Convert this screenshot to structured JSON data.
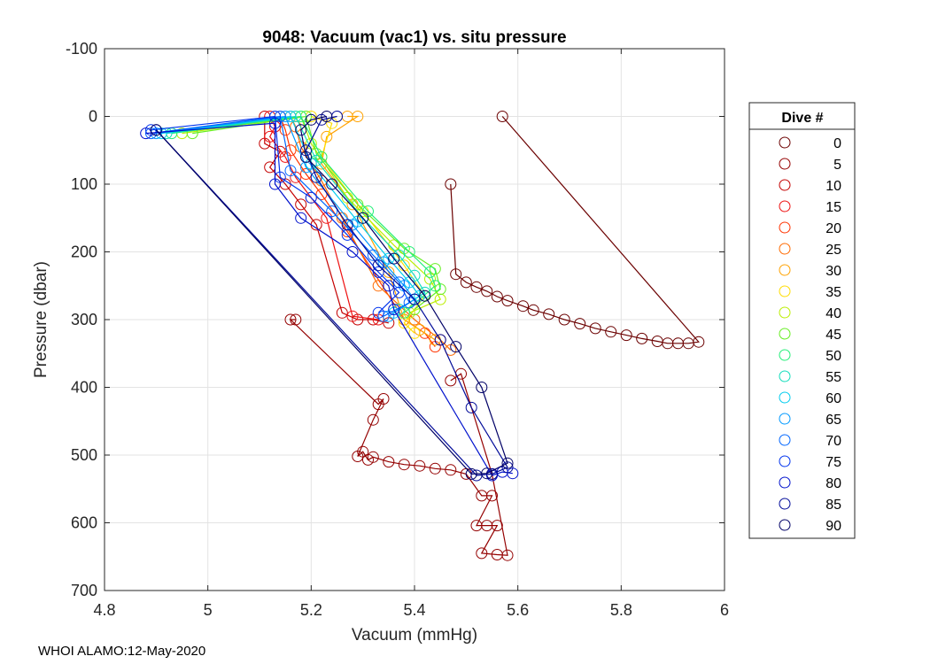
{
  "footer_text": "WHOI ALAMO:12-May-2020",
  "chart_data": {
    "type": "scatter",
    "title": "9048: Vacuum (vac1) vs. situ pressure",
    "xlabel": "Vacuum (mmHg)",
    "ylabel": "Pressure (dbar)",
    "xlim": [
      4.8,
      6
    ],
    "ylim": [
      -100,
      700
    ],
    "y_reversed": true,
    "grid": true,
    "xticks": [
      4.8,
      5,
      5.2,
      5.4,
      5.6,
      5.8,
      6
    ],
    "xtick_labels": [
      "4.8",
      "5",
      "5.2",
      "5.4",
      "5.6",
      "5.8",
      "6"
    ],
    "yticks": [
      -100,
      0,
      100,
      200,
      300,
      400,
      500,
      600,
      700
    ],
    "ytick_labels": [
      "-100",
      "0",
      "100",
      "200",
      "300",
      "400",
      "500",
      "600",
      "700"
    ],
    "legend": {
      "title": "Dive #",
      "position": "outside-right",
      "entries": [
        {
          "label": "0",
          "color": "#6b0000"
        },
        {
          "label": "5",
          "color": "#940000"
        },
        {
          "label": "10",
          "color": "#c40000"
        },
        {
          "label": "15",
          "color": "#ee1111"
        },
        {
          "label": "20",
          "color": "#ff3300"
        },
        {
          "label": "25",
          "color": "#ff6a00"
        },
        {
          "label": "30",
          "color": "#ffa200"
        },
        {
          "label": "35",
          "color": "#ffdd00"
        },
        {
          "label": "40",
          "color": "#bbee00"
        },
        {
          "label": "45",
          "color": "#66ee22"
        },
        {
          "label": "50",
          "color": "#22ee77"
        },
        {
          "label": "55",
          "color": "#11ddbb"
        },
        {
          "label": "60",
          "color": "#00ccee"
        },
        {
          "label": "65",
          "color": "#0099ff"
        },
        {
          "label": "70",
          "color": "#0066ff"
        },
        {
          "label": "75",
          "color": "#0033ee"
        },
        {
          "label": "80",
          "color": "#0011cc"
        },
        {
          "label": "85",
          "color": "#000a99"
        },
        {
          "label": "90",
          "color": "#000066"
        }
      ]
    },
    "series": [
      {
        "name": "0",
        "color": "#6b0000",
        "points": [
          [
            5.57,
            0
          ],
          [
            5.95,
            333
          ],
          [
            5.93,
            335
          ],
          [
            5.91,
            335
          ],
          [
            5.89,
            335
          ],
          [
            5.87,
            332
          ],
          [
            5.84,
            328
          ],
          [
            5.81,
            323
          ],
          [
            5.78,
            318
          ],
          [
            5.75,
            313
          ],
          [
            5.72,
            306
          ],
          [
            5.69,
            300
          ],
          [
            5.66,
            292
          ],
          [
            5.63,
            286
          ],
          [
            5.61,
            280
          ],
          [
            5.58,
            272
          ],
          [
            5.56,
            266
          ],
          [
            5.54,
            258
          ],
          [
            5.52,
            252
          ],
          [
            5.5,
            245
          ],
          [
            5.48,
            233
          ],
          [
            5.47,
            100
          ]
        ]
      },
      {
        "name": "5",
        "color": "#940000",
        "points": [
          [
            5.17,
            300
          ],
          [
            5.16,
            300
          ],
          [
            5.33,
            425
          ],
          [
            5.34,
            417
          ],
          [
            5.32,
            448
          ],
          [
            5.29,
            502
          ],
          [
            5.3,
            495
          ],
          [
            5.31,
            507
          ],
          [
            5.32,
            503
          ],
          [
            5.35,
            510
          ],
          [
            5.38,
            514
          ],
          [
            5.41,
            516
          ],
          [
            5.44,
            520
          ],
          [
            5.47,
            522
          ],
          [
            5.5,
            528
          ],
          [
            5.53,
            560
          ],
          [
            5.55,
            560
          ],
          [
            5.52,
            604
          ],
          [
            5.54,
            604
          ],
          [
            5.56,
            604
          ],
          [
            5.53,
            645
          ],
          [
            5.56,
            647
          ],
          [
            5.58,
            648
          ],
          [
            5.55,
            528
          ],
          [
            5.49,
            380
          ],
          [
            5.47,
            390
          ]
        ]
      },
      {
        "name": "10",
        "color": "#c40000",
        "points": [
          [
            5.11,
            0
          ],
          [
            5.11,
            40
          ],
          [
            5.14,
            52
          ],
          [
            5.12,
            75
          ],
          [
            5.15,
            100
          ],
          [
            5.18,
            130
          ],
          [
            5.21,
            160
          ],
          [
            5.26,
            290
          ],
          [
            5.29,
            300
          ],
          [
            5.32,
            300
          ],
          [
            5.35,
            305
          ]
        ]
      },
      {
        "name": "15",
        "color": "#ee1111",
        "points": [
          [
            5.12,
            0
          ],
          [
            5.13,
            15
          ],
          [
            5.12,
            30
          ],
          [
            5.15,
            60
          ],
          [
            5.17,
            90
          ],
          [
            5.2,
            120
          ],
          [
            5.23,
            150
          ],
          [
            5.28,
            295
          ],
          [
            5.33,
            300
          ]
        ]
      },
      {
        "name": "20",
        "color": "#ff3300",
        "points": [
          [
            5.14,
            0
          ],
          [
            5.15,
            20
          ],
          [
            5.16,
            50
          ],
          [
            5.19,
            85
          ],
          [
            5.22,
            115
          ],
          [
            5.27,
            170
          ],
          [
            5.38,
            300
          ],
          [
            5.42,
            320
          ],
          [
            5.44,
            340
          ]
        ]
      },
      {
        "name": "25",
        "color": "#ff6a00",
        "points": [
          [
            5.16,
            0
          ],
          [
            5.17,
            15
          ],
          [
            5.18,
            45
          ],
          [
            5.22,
            95
          ],
          [
            5.26,
            150
          ],
          [
            5.33,
            250
          ],
          [
            5.4,
            300
          ],
          [
            5.45,
            330
          ],
          [
            5.47,
            345
          ]
        ]
      },
      {
        "name": "30",
        "color": "#ffa200",
        "points": [
          [
            5.27,
            0
          ],
          [
            5.29,
            0
          ],
          [
            5.23,
            30
          ],
          [
            5.22,
            70
          ],
          [
            5.28,
            130
          ],
          [
            5.35,
            230
          ],
          [
            5.38,
            300
          ],
          [
            5.41,
            315
          ],
          [
            5.44,
            330
          ]
        ]
      },
      {
        "name": "35",
        "color": "#ffdd00",
        "points": [
          [
            5.2,
            0
          ],
          [
            5.24,
            10
          ],
          [
            5.22,
            60
          ],
          [
            5.3,
            140
          ],
          [
            5.38,
            220
          ],
          [
            5.42,
            265
          ],
          [
            5.38,
            305
          ],
          [
            5.4,
            320
          ]
        ]
      },
      {
        "name": "40",
        "color": "#bbee00",
        "points": [
          [
            4.95,
            25
          ],
          [
            5.18,
            0
          ],
          [
            5.2,
            40
          ],
          [
            5.27,
            120
          ],
          [
            5.36,
            190
          ],
          [
            5.43,
            240
          ],
          [
            5.45,
            270
          ],
          [
            5.39,
            290
          ]
        ]
      },
      {
        "name": "45",
        "color": "#66ee22",
        "points": [
          [
            4.97,
            25
          ],
          [
            5.19,
            0
          ],
          [
            5.21,
            55
          ],
          [
            5.29,
            130
          ],
          [
            5.38,
            195
          ],
          [
            5.44,
            225
          ],
          [
            5.45,
            255
          ],
          [
            5.4,
            285
          ]
        ]
      },
      {
        "name": "50",
        "color": "#22ee77",
        "points": [
          [
            4.93,
            25
          ],
          [
            5.18,
            0
          ],
          [
            5.22,
            60
          ],
          [
            5.31,
            140
          ],
          [
            5.39,
            200
          ],
          [
            5.43,
            230
          ],
          [
            5.44,
            250
          ],
          [
            5.38,
            290
          ]
        ]
      },
      {
        "name": "55",
        "color": "#11ddbb",
        "points": [
          [
            4.92,
            25
          ],
          [
            5.17,
            0
          ],
          [
            5.21,
            65
          ],
          [
            5.3,
            150
          ],
          [
            5.37,
            205
          ],
          [
            5.4,
            235
          ],
          [
            5.42,
            260
          ],
          [
            5.37,
            285
          ]
        ]
      },
      {
        "name": "60",
        "color": "#00ccee",
        "points": [
          [
            4.91,
            25
          ],
          [
            5.16,
            0
          ],
          [
            5.2,
            70
          ],
          [
            5.29,
            155
          ],
          [
            5.35,
            210
          ],
          [
            5.39,
            245
          ],
          [
            5.41,
            265
          ],
          [
            5.36,
            290
          ]
        ]
      },
      {
        "name": "65",
        "color": "#0099ff",
        "points": [
          [
            4.9,
            25
          ],
          [
            5.15,
            0
          ],
          [
            5.19,
            75
          ],
          [
            5.28,
            160
          ],
          [
            5.34,
            215
          ],
          [
            5.38,
            250
          ],
          [
            5.4,
            270
          ],
          [
            5.35,
            295
          ]
        ]
      },
      {
        "name": "70",
        "color": "#0066ff",
        "points": [
          [
            4.89,
            25
          ],
          [
            5.14,
            0
          ],
          [
            5.16,
            80
          ],
          [
            5.24,
            140
          ],
          [
            5.32,
            205
          ],
          [
            5.37,
            245
          ],
          [
            5.39,
            275
          ],
          [
            5.34,
            295
          ]
        ]
      },
      {
        "name": "75",
        "color": "#0033ee",
        "points": [
          [
            4.89,
            20
          ],
          [
            5.13,
            0
          ],
          [
            5.14,
            90
          ],
          [
            5.2,
            120
          ],
          [
            5.27,
            175
          ],
          [
            5.33,
            230
          ],
          [
            5.37,
            260
          ],
          [
            5.33,
            290
          ]
        ]
      },
      {
        "name": "80",
        "color": "#0011cc",
        "points": [
          [
            4.88,
            25
          ],
          [
            5.13,
            10
          ],
          [
            5.13,
            100
          ],
          [
            5.18,
            150
          ],
          [
            5.28,
            200
          ],
          [
            5.35,
            250
          ],
          [
            5.36,
            285
          ],
          [
            5.55,
            530
          ],
          [
            5.57,
            525
          ],
          [
            5.59,
            527
          ]
        ]
      },
      {
        "name": "85",
        "color": "#000a99",
        "points": [
          [
            4.9,
            20
          ],
          [
            5.52,
            530
          ],
          [
            5.55,
            528
          ],
          [
            5.58,
            518
          ],
          [
            5.51,
            430
          ],
          [
            5.45,
            330
          ],
          [
            5.4,
            270
          ],
          [
            5.33,
            220
          ],
          [
            5.27,
            160
          ],
          [
            5.21,
            90
          ],
          [
            5.19,
            50
          ],
          [
            5.22,
            5
          ],
          [
            5.25,
            0
          ]
        ]
      },
      {
        "name": "90",
        "color": "#000066",
        "points": [
          [
            4.9,
            20
          ],
          [
            5.51,
            528
          ],
          [
            5.54,
            527
          ],
          [
            5.58,
            512
          ],
          [
            5.53,
            400
          ],
          [
            5.48,
            340
          ],
          [
            5.42,
            265
          ],
          [
            5.36,
            210
          ],
          [
            5.3,
            150
          ],
          [
            5.24,
            100
          ],
          [
            5.19,
            60
          ],
          [
            5.18,
            20
          ],
          [
            5.2,
            5
          ],
          [
            5.23,
            0
          ]
        ]
      }
    ]
  }
}
